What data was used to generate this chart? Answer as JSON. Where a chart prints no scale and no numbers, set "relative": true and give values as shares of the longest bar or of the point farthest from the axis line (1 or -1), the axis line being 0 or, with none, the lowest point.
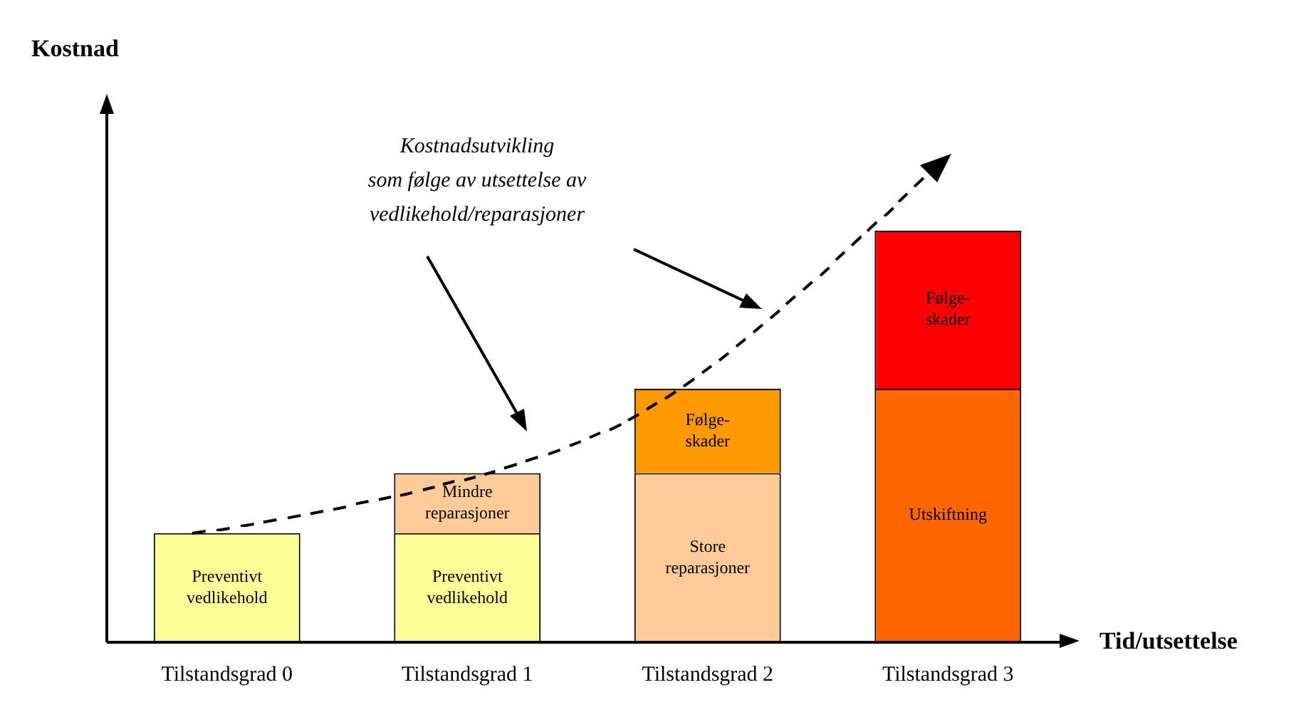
{
  "chart_data": {
    "type": "bar",
    "stacked": true,
    "relative": true,
    "xlabel": "Tid/utsettelse",
    "categories": [
      "Tilstandsgrad 0",
      "Tilstandsgrad 1",
      "Tilstandsgrad 2",
      "Tilstandsgrad 3"
    ],
    "series": [
      {
        "name": "Preventivt vedlikehold",
        "color": "#ffff99",
        "values": [
          0.265,
          0.265,
          null,
          null
        ]
      },
      {
        "name": "Mindre reparasjoner",
        "color": "#ffcc99",
        "values": [
          null,
          0.146,
          null,
          null
        ]
      },
      {
        "name": "Store reparasjoner",
        "color": "#ffcc99",
        "values": [
          null,
          null,
          0.411,
          null
        ]
      },
      {
        "name": "Utskiftning",
        "color": "#ff6600",
        "values": [
          null,
          null,
          null,
          0.616
        ]
      },
      {
        "name": "Følge-skader",
        "colors": [
          "#ff9900",
          "#ff9900",
          "#ff9900",
          "#ff0000"
        ],
        "values": [
          null,
          null,
          0.205,
          0.384
        ]
      }
    ],
    "annotations": [
      "Kostnad",
      "Kostnadsutvikling\nsom følge av utsettelse av\nvedlikehold/reparasjoner"
    ],
    "grid": false,
    "legend": false
  }
}
